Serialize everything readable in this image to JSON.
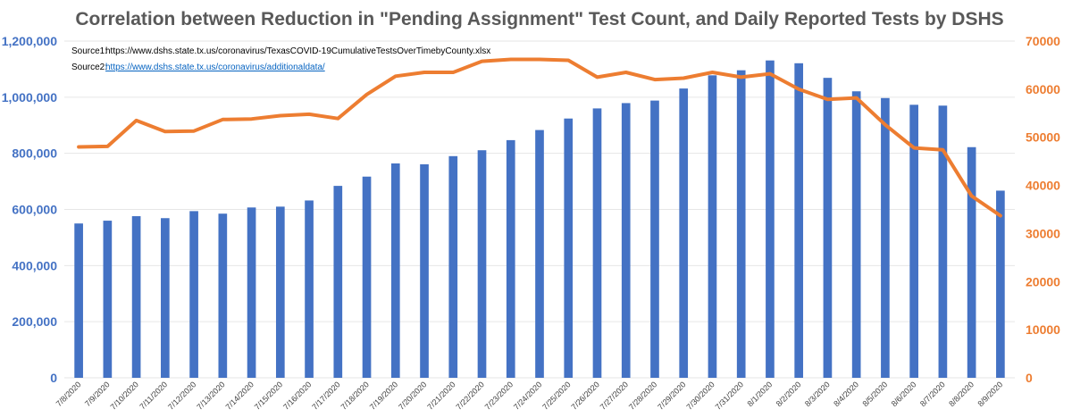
{
  "chart_data": {
    "type": "bar",
    "title": "Correlation between Reduction in \"Pending Assignment\" Test Count, and Daily Reported Tests by DSHS",
    "sources": [
      {
        "label": "Source1:",
        "text": "https://www.dshs.state.tx.us/coronavirus/TexasCOVID-19CumulativeTestsOverTimebyCounty.xlsx",
        "link": false
      },
      {
        "label": "Source2:",
        "text": "https://www.dshs.state.tx.us/coronavirus/additionaldata/",
        "link": true
      }
    ],
    "categories": [
      "7/8/2020",
      "7/9/2020",
      "7/10/2020",
      "7/11/2020",
      "7/12/2020",
      "7/13/2020",
      "7/14/2020",
      "7/15/2020",
      "7/16/2020",
      "7/17/2020",
      "7/18/2020",
      "7/19/2020",
      "7/20/2020",
      "7/21/2020",
      "7/22/2020",
      "7/23/2020",
      "7/24/2020",
      "7/25/2020",
      "7/26/2020",
      "7/27/2020",
      "7/28/2020",
      "7/29/2020",
      "7/30/2020",
      "7/31/2020",
      "8/1/2020",
      "8/2/2020",
      "8/3/2020",
      "8/4/2020",
      "8/5/2020",
      "8/6/2020",
      "8/7/2020",
      "8/8/2020",
      "8/9/2020"
    ],
    "series": [
      {
        "type": "bar",
        "axis": "left",
        "color": "#4472C4",
        "values": [
          550000,
          560000,
          576000,
          569000,
          594000,
          585000,
          607000,
          610000,
          632000,
          684000,
          717000,
          764000,
          761000,
          790000,
          811000,
          847000,
          883000,
          924000,
          960000,
          979000,
          988000,
          1031000,
          1078000,
          1096000,
          1131000,
          1121000,
          1069000,
          1021000,
          997000,
          973000,
          970000,
          822000,
          667000
        ]
      },
      {
        "type": "line",
        "axis": "right",
        "color": "#ED7D31",
        "values": [
          48000,
          48100,
          53500,
          51200,
          51300,
          53700,
          53800,
          54500,
          54800,
          53900,
          58900,
          62700,
          63500,
          63500,
          65800,
          66200,
          66200,
          66000,
          62500,
          63500,
          62000,
          62300,
          63500,
          62500,
          63200,
          60000,
          57900,
          58200,
          52600,
          47800,
          47400,
          37800,
          33700
        ]
      }
    ],
    "y_left": {
      "min": 0,
      "max": 1200000,
      "ticks": [
        "0",
        "200,000",
        "400,000",
        "600,000",
        "800,000",
        "1,000,000",
        "1,200,000"
      ],
      "color": "#4472C4"
    },
    "y_right": {
      "min": 0,
      "max": 70000,
      "ticks": [
        "0",
        "10000",
        "20000",
        "30000",
        "40000",
        "50000",
        "60000",
        "70000"
      ],
      "color": "#ED7D31"
    },
    "grid": true,
    "legend": "none"
  }
}
